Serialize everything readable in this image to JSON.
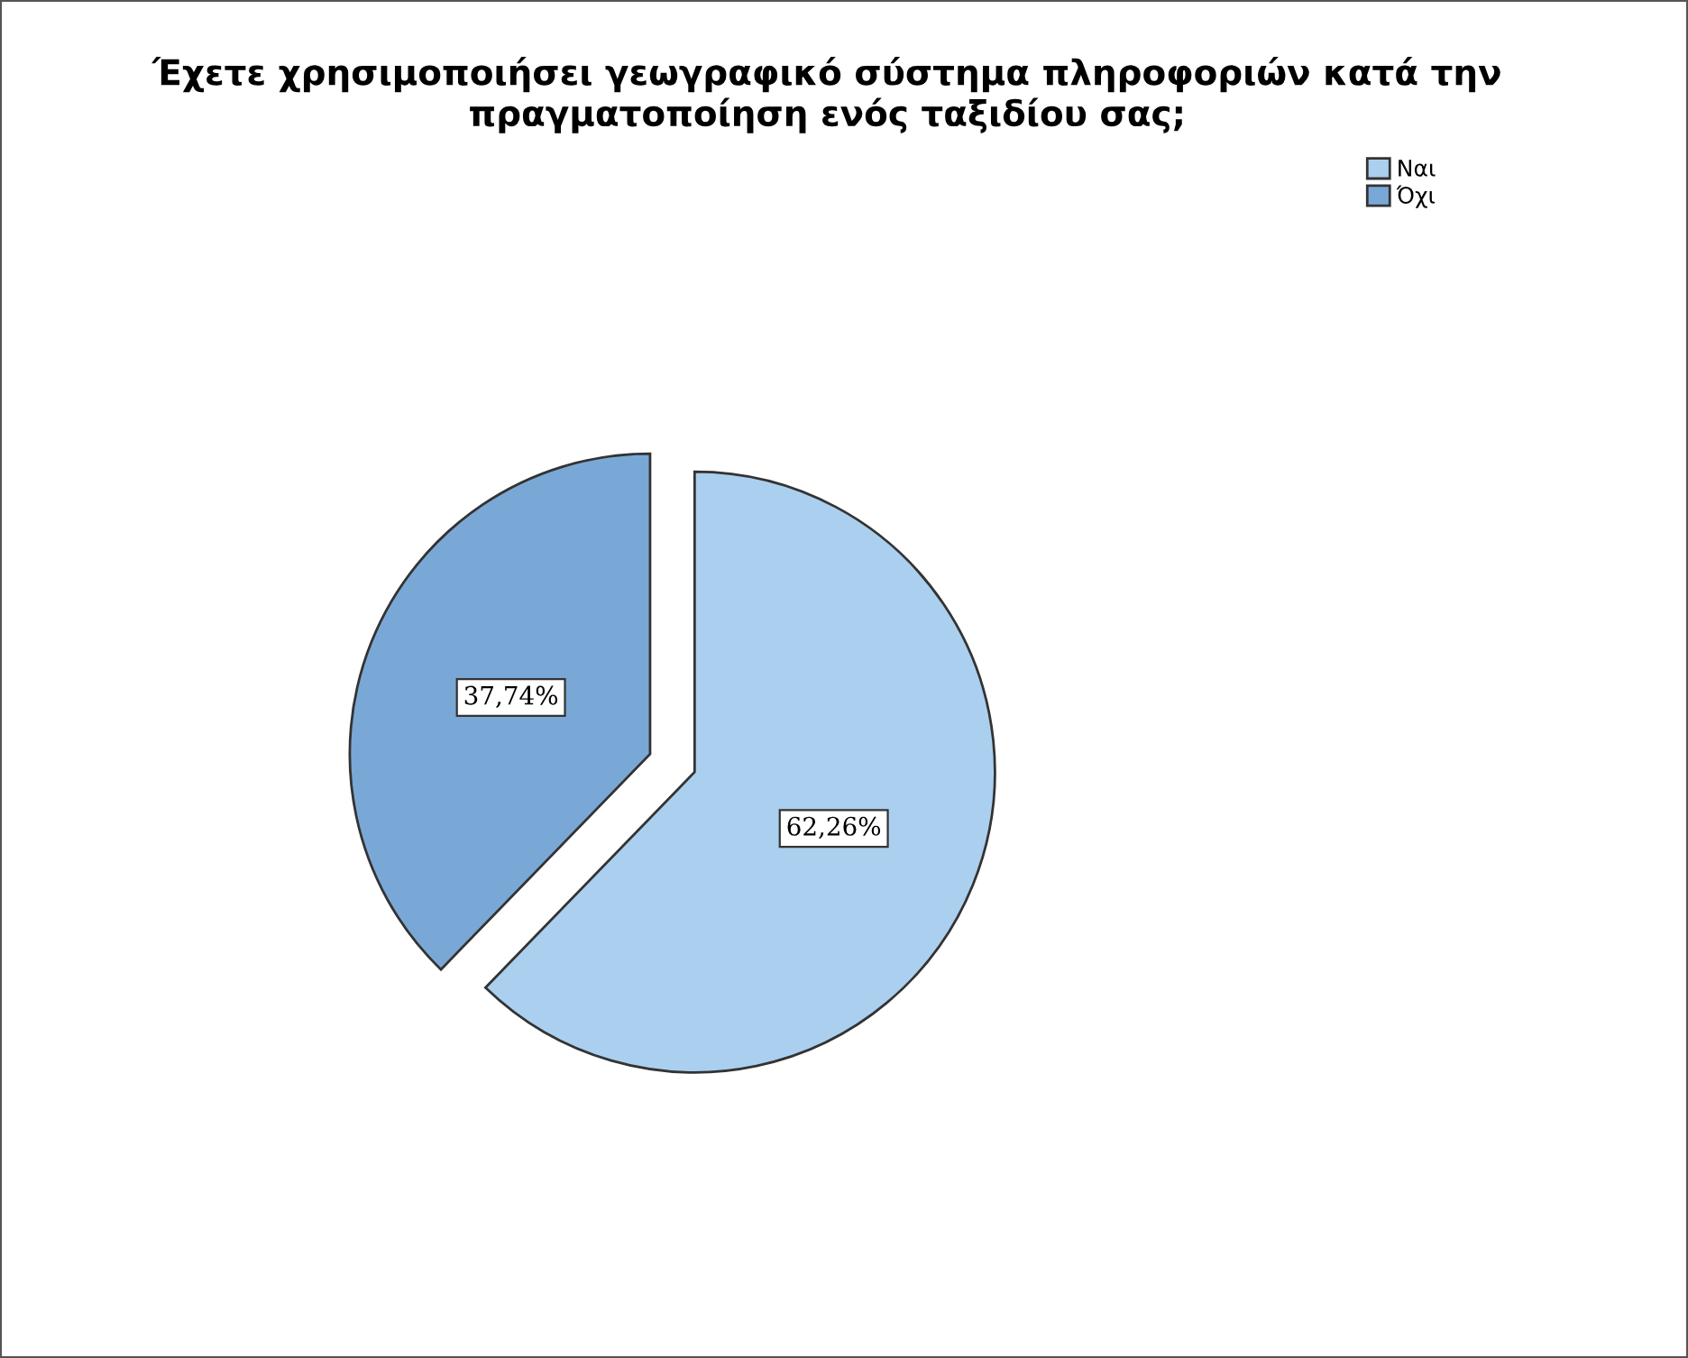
{
  "chart_data": {
    "type": "pie",
    "title": "Έχετε χρησιμοποιήσει γεωγραφικό σύστημα πληροφοριών κατά την πραγματοποίηση ενός ταξιδίου σας;",
    "categories": [
      "Ναι",
      "Όχι"
    ],
    "values": [
      62.26,
      37.74
    ],
    "colors": [
      "#abcfee",
      "#7aa8d6"
    ],
    "value_labels": [
      "62,26%",
      "37,74%"
    ],
    "legend": "top right"
  }
}
